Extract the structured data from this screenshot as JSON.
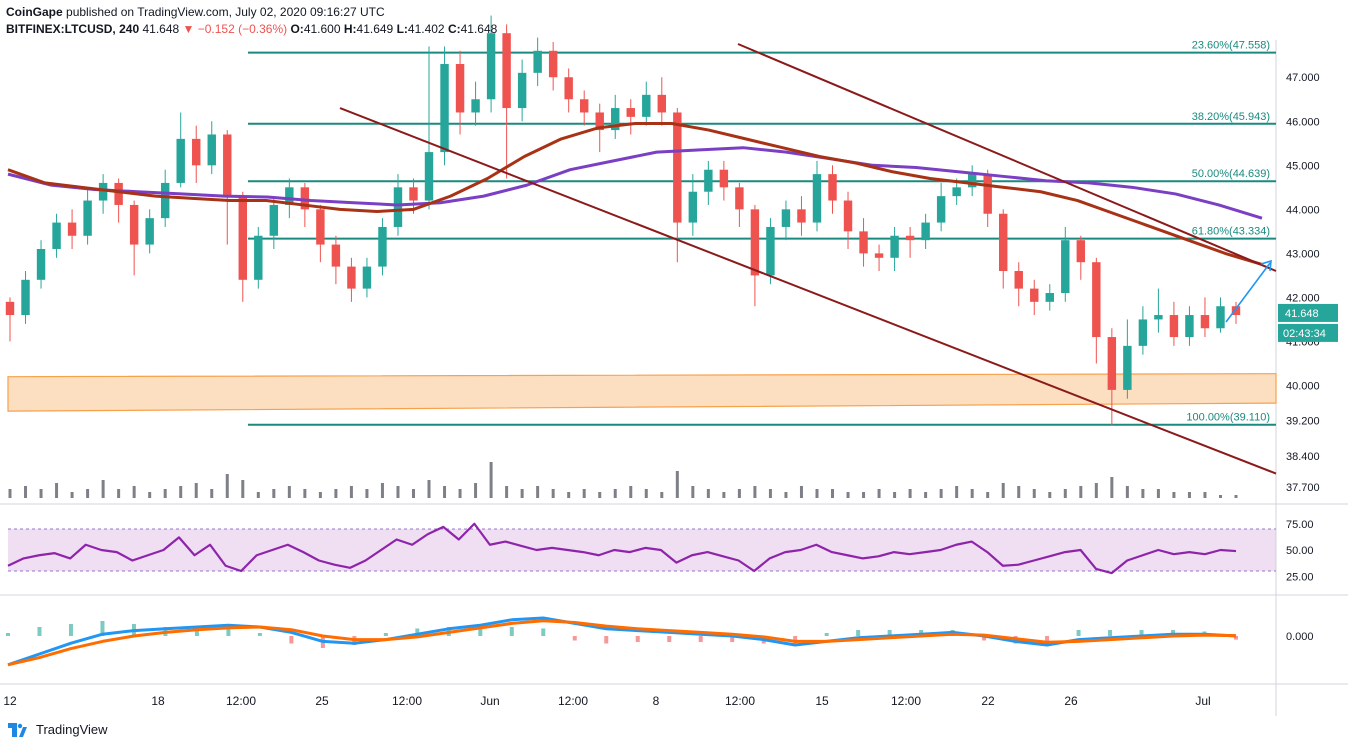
{
  "header": {
    "publisher": "CoinGape",
    "published_text": "published on TradingView.com, July 02, 2020 09:16:27 UTC",
    "symbol": "BITFINEX:LTCUSD, 240",
    "last": "41.648",
    "change": "▼ −0.152 (−0.36%)",
    "ohlc_o_label": "O:",
    "ohlc_o": "41.600",
    "ohlc_h_label": "H:",
    "ohlc_h": "41.649",
    "ohlc_l_label": "L:",
    "ohlc_l": "41.402",
    "ohlc_c_label": "C:",
    "ohlc_c": "41.648"
  },
  "footer": {
    "brand": "TradingView"
  },
  "colors": {
    "up": "#26a69a",
    "down": "#ef5350",
    "fib": "#1a8a7f",
    "trend": "#8b1a1a",
    "ma_brown": "#a83216",
    "ma_purple": "#7b3fc4",
    "zone": "#f7a14b",
    "rsi": "#8e24aa",
    "macd": "#2196f3",
    "signal": "#ff6d00",
    "arrow": "#2196f3"
  },
  "chart_data": [
    {
      "type": "candlestick",
      "title": "BITFINEX:LTCUSD, 240",
      "price_axis_ticks": [
        "47.000",
        "46.000",
        "45.000",
        "44.000",
        "43.000",
        "42.000",
        "41.000",
        "40.000",
        "39.200",
        "38.400",
        "37.700"
      ],
      "time_axis_ticks": [
        "12",
        "18",
        "12:00",
        "25",
        "12:00",
        "Jun",
        "12:00",
        "8",
        "12:00",
        "15",
        "12:00",
        "22",
        "26",
        "Jul"
      ],
      "last_price_label": "41.648",
      "countdown_label": "02:43:34",
      "fib_levels": [
        {
          "label": "23.60%(47.558)",
          "value": 47.558
        },
        {
          "label": "38.20%(45.943)",
          "value": 45.943
        },
        {
          "label": "50.00%(44.639)",
          "value": 44.639
        },
        {
          "label": "61.80%(43.334)",
          "value": 43.334
        },
        {
          "label": "100.00%(39.110)",
          "value": 39.11
        }
      ],
      "support_zone": {
        "low": 39.6,
        "high": 40.2
      },
      "candles": [
        [
          41.9,
          41.6,
          42.0,
          41.0
        ],
        [
          41.6,
          42.4,
          42.6,
          41.4
        ],
        [
          42.4,
          43.1,
          43.3,
          42.2
        ],
        [
          43.1,
          43.7,
          43.9,
          42.9
        ],
        [
          43.7,
          43.4,
          44.0,
          43.1
        ],
        [
          43.4,
          44.2,
          44.5,
          43.2
        ],
        [
          44.2,
          44.6,
          44.8,
          43.9
        ],
        [
          44.6,
          44.1,
          44.7,
          43.7
        ],
        [
          44.1,
          43.2,
          44.2,
          42.5
        ],
        [
          43.2,
          43.8,
          44.0,
          43.0
        ],
        [
          43.8,
          44.6,
          44.9,
          43.6
        ],
        [
          44.6,
          45.6,
          46.2,
          44.5
        ],
        [
          45.6,
          45.0,
          45.9,
          44.6
        ],
        [
          45.0,
          45.7,
          46.0,
          44.8
        ],
        [
          45.7,
          44.3,
          45.8,
          43.2
        ],
        [
          44.3,
          42.4,
          44.4,
          41.9
        ],
        [
          42.4,
          43.4,
          43.6,
          42.2
        ],
        [
          43.4,
          44.1,
          44.3,
          43.1
        ],
        [
          44.1,
          44.5,
          44.7,
          43.8
        ],
        [
          44.5,
          44.0,
          44.6,
          43.6
        ],
        [
          44.0,
          43.2,
          44.1,
          42.8
        ],
        [
          43.2,
          42.7,
          43.4,
          42.3
        ],
        [
          42.7,
          42.2,
          42.9,
          41.9
        ],
        [
          42.2,
          42.7,
          42.9,
          42.0
        ],
        [
          42.7,
          43.6,
          43.8,
          42.5
        ],
        [
          43.6,
          44.5,
          44.8,
          43.4
        ],
        [
          44.5,
          44.2,
          44.7,
          43.9
        ],
        [
          44.2,
          45.3,
          47.7,
          44.0
        ],
        [
          45.3,
          47.3,
          47.7,
          45.0
        ],
        [
          47.3,
          46.2,
          47.6,
          45.7
        ],
        [
          46.2,
          46.5,
          46.9,
          45.9
        ],
        [
          46.5,
          48.0,
          48.4,
          46.2
        ],
        [
          48.0,
          46.3,
          48.2,
          44.7
        ],
        [
          46.3,
          47.1,
          47.4,
          46.0
        ],
        [
          47.1,
          47.6,
          47.9,
          46.8
        ],
        [
          47.6,
          47.0,
          47.8,
          46.7
        ],
        [
          47.0,
          46.5,
          47.2,
          46.2
        ],
        [
          46.5,
          46.2,
          46.7,
          45.9
        ],
        [
          46.2,
          45.8,
          46.4,
          45.3
        ],
        [
          45.8,
          46.3,
          46.6,
          45.6
        ],
        [
          46.3,
          46.1,
          46.5,
          45.7
        ],
        [
          46.1,
          46.6,
          46.9,
          45.9
        ],
        [
          46.6,
          46.2,
          47.0,
          45.9
        ],
        [
          46.2,
          43.7,
          46.3,
          42.8
        ],
        [
          43.7,
          44.4,
          44.8,
          43.4
        ],
        [
          44.4,
          44.9,
          45.1,
          44.1
        ],
        [
          44.9,
          44.5,
          45.1,
          44.2
        ],
        [
          44.5,
          44.0,
          44.6,
          43.6
        ],
        [
          44.0,
          42.5,
          44.1,
          41.8
        ],
        [
          42.5,
          43.6,
          43.8,
          42.3
        ],
        [
          43.6,
          44.0,
          44.2,
          43.3
        ],
        [
          44.0,
          43.7,
          44.3,
          43.4
        ],
        [
          43.7,
          44.8,
          45.1,
          43.5
        ],
        [
          44.8,
          44.2,
          45.0,
          43.9
        ],
        [
          44.2,
          43.5,
          44.4,
          43.1
        ],
        [
          43.5,
          43.0,
          43.8,
          42.7
        ],
        [
          43.0,
          42.9,
          43.2,
          42.6
        ],
        [
          42.9,
          43.4,
          43.6,
          42.6
        ],
        [
          43.4,
          43.3,
          43.6,
          42.9
        ],
        [
          43.3,
          43.7,
          43.9,
          43.1
        ],
        [
          43.7,
          44.3,
          44.6,
          43.5
        ],
        [
          44.3,
          44.5,
          44.7,
          44.1
        ],
        [
          44.5,
          44.8,
          45.0,
          44.3
        ],
        [
          44.8,
          43.9,
          44.9,
          43.6
        ],
        [
          43.9,
          42.6,
          44.0,
          42.2
        ],
        [
          42.6,
          42.2,
          42.8,
          41.8
        ],
        [
          42.2,
          41.9,
          42.4,
          41.6
        ],
        [
          41.9,
          42.1,
          42.3,
          41.7
        ],
        [
          42.1,
          43.3,
          43.6,
          41.9
        ],
        [
          43.3,
          42.8,
          43.4,
          42.4
        ],
        [
          42.8,
          41.1,
          42.9,
          40.5
        ],
        [
          41.1,
          39.9,
          41.3,
          39.1
        ],
        [
          39.9,
          40.9,
          41.5,
          39.7
        ],
        [
          40.9,
          41.5,
          41.8,
          40.7
        ],
        [
          41.5,
          41.6,
          42.2,
          41.2
        ],
        [
          41.6,
          41.1,
          41.9,
          40.9
        ],
        [
          41.1,
          41.6,
          41.8,
          40.9
        ],
        [
          41.6,
          41.3,
          42.0,
          41.1
        ],
        [
          41.3,
          41.8,
          42.0,
          41.2
        ],
        [
          41.8,
          41.6,
          41.9,
          41.4
        ]
      ],
      "ma_brown": [
        44.9,
        44.6,
        44.5,
        44.4,
        44.3,
        44.25,
        44.2,
        44.2,
        44.1,
        44.0,
        43.95,
        44.0,
        44.3,
        44.7,
        45.2,
        45.6,
        45.85,
        45.95,
        45.95,
        45.8,
        45.6,
        45.4,
        45.2,
        45.05,
        44.85,
        44.7,
        44.6,
        44.5,
        44.4,
        44.2,
        43.9,
        43.6,
        43.3,
        43.0,
        42.75
      ],
      "ma_purple": [
        44.8,
        44.55,
        44.45,
        44.4,
        44.35,
        44.3,
        44.28,
        44.2,
        44.15,
        44.1,
        44.15,
        44.3,
        44.55,
        44.9,
        45.1,
        45.3,
        45.35,
        45.4,
        45.3,
        45.15,
        45.0,
        44.95,
        44.85,
        44.75,
        44.65,
        44.6,
        44.5,
        44.35,
        44.1,
        43.8
      ],
      "trendlines": [
        {
          "from": [
            0.0,
            46.3
          ],
          "to": [
            1.0,
            38.0
          ]
        },
        {
          "from": [
            0.0,
            48.5
          ],
          "to": [
            1.0,
            42.6
          ]
        }
      ]
    },
    {
      "type": "line",
      "title": "RSI",
      "y_ticks": [
        "75.00",
        "50.00",
        "25.00"
      ],
      "band": [
        30,
        70
      ],
      "values": [
        35,
        42,
        45,
        47,
        42,
        55,
        50,
        48,
        40,
        45,
        50,
        62,
        45,
        55,
        35,
        30,
        45,
        50,
        55,
        48,
        40,
        36,
        33,
        40,
        50,
        60,
        55,
        65,
        72,
        60,
        75,
        55,
        58,
        54,
        50,
        52,
        50,
        48,
        45,
        50,
        48,
        52,
        50,
        38,
        45,
        48,
        44,
        40,
        30,
        42,
        48,
        50,
        55,
        48,
        45,
        42,
        44,
        48,
        46,
        48,
        50,
        55,
        58,
        48,
        35,
        36,
        40,
        44,
        48,
        50,
        32,
        28,
        40,
        45,
        50,
        46,
        48,
        46,
        50,
        49
      ]
    },
    {
      "type": "line",
      "title": "MACD",
      "y_ticks": [
        "0.000"
      ],
      "macd": [
        -1.6,
        -1.0,
        -0.4,
        0.1,
        0.3,
        0.4,
        0.5,
        0.6,
        0.5,
        0.2,
        -0.3,
        -0.4,
        -0.2,
        0.1,
        0.4,
        0.6,
        0.9,
        1.0,
        0.7,
        0.4,
        0.3,
        0.2,
        0.1,
        0.0,
        -0.2,
        -0.5,
        -0.3,
        -0.1,
        0.0,
        0.1,
        0.2,
        0.0,
        -0.3,
        -0.5,
        -0.2,
        -0.1,
        0.0,
        0.1,
        0.1,
        0.0
      ],
      "signal": [
        -1.6,
        -1.2,
        -0.7,
        -0.3,
        0.0,
        0.2,
        0.35,
        0.45,
        0.5,
        0.35,
        0.0,
        -0.2,
        -0.2,
        -0.05,
        0.2,
        0.45,
        0.7,
        0.85,
        0.75,
        0.55,
        0.4,
        0.3,
        0.2,
        0.1,
        -0.05,
        -0.3,
        -0.3,
        -0.2,
        -0.1,
        0.0,
        0.1,
        0.05,
        -0.15,
        -0.35,
        -0.3,
        -0.2,
        -0.1,
        0.0,
        0.05,
        0.02
      ]
    }
  ]
}
